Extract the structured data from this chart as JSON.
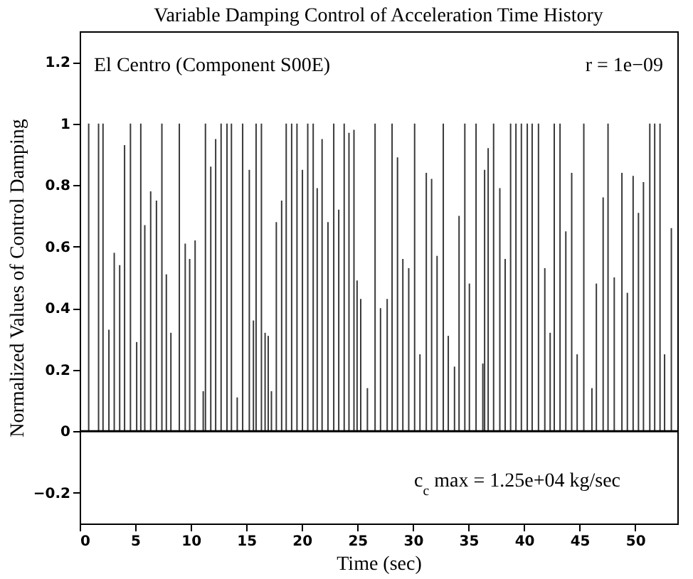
{
  "chart_data": {
    "type": "bar",
    "title": "Variable Damping Control of Acceleration Time History",
    "xlabel": "Time (sec)",
    "ylabel": "Normalized Values of Control Damping",
    "annotations": [
      "El Centro (Component S00E)",
      "r = 1e−09",
      "c$_{c}$ max = 1.25e+04 kg/sec"
    ],
    "x": [
      0.81,
      1.7,
      2.1,
      2.63,
      3.11,
      3.6,
      4.04,
      4.57,
      5.13,
      5.5,
      5.86,
      6.39,
      6.91,
      7.4,
      7.8,
      8.21,
      8.97,
      9.5,
      9.9,
      10.39,
      11.12,
      11.32,
      11.8,
      12.24,
      12.73,
      13.26,
      13.66,
      14.18,
      14.67,
      15.27,
      15.64,
      15.88,
      16.36,
      16.69,
      16.97,
      17.26,
      17.7,
      18.18,
      18.59,
      19.08,
      19.56,
      20.05,
      20.53,
      21.02,
      21.38,
      21.82,
      22.35,
      22.87,
      23.32,
      23.81,
      24.24,
      24.69,
      24.97,
      25.3,
      25.9,
      26.59,
      27.08,
      27.68,
      28.12,
      28.61,
      29.09,
      29.62,
      30.15,
      30.63,
      31.2,
      31.68,
      32.17,
      32.73,
      33.18,
      33.74,
      34.15,
      34.67,
      35.08,
      35.68,
      36.29,
      36.45,
      36.77,
      37.26,
      37.82,
      38.3,
      38.79,
      39.27,
      39.76,
      40.29,
      40.73,
      41.3,
      41.87,
      42.35,
      42.72,
      43.24,
      43.76,
      44.29,
      44.78,
      45.38,
      46.11,
      46.51,
      47.12,
      47.56,
      48.12,
      48.81,
      49.3,
      49.82,
      50.3,
      50.75,
      51.32,
      51.76,
      52.24,
      52.65,
      53.26
    ],
    "series": [
      {
        "color": "#3a3a3a",
        "values": [
          1,
          1,
          1,
          0.33,
          0.58,
          0.54,
          0.93,
          1,
          0.29,
          1,
          0.67,
          0.78,
          0.75,
          1,
          0.51,
          0.32,
          1,
          0.61,
          0.56,
          0.62,
          0.13,
          1,
          0.86,
          0.95,
          1,
          1,
          1,
          0.11,
          1,
          0.85,
          0.36,
          1,
          1,
          0.32,
          0.31,
          0.13,
          0.68,
          0.75,
          1,
          1,
          1,
          0.85,
          1,
          1,
          0.79,
          0.95,
          0.68,
          1,
          0.72,
          1,
          0.97,
          0.98,
          0.49,
          0.43,
          0.14,
          1,
          0.4,
          0.43,
          1,
          0.89,
          0.56,
          0.53,
          1,
          0.25,
          0.84,
          0.82,
          0.57,
          1,
          0.31,
          0.21,
          0.7,
          1,
          0.48,
          1,
          0.22,
          0.85,
          0.92,
          1,
          0.79,
          0.56,
          1,
          1,
          1,
          1,
          1,
          1,
          0.53,
          0.32,
          1,
          1,
          0.65,
          0.84,
          0.25,
          1,
          0.14,
          0.48,
          0.76,
          1,
          0.5,
          0.84,
          0.45,
          0.83,
          0.71,
          0.81,
          1,
          1,
          1,
          0.25,
          0.66
        ]
      }
    ],
    "xlim": [
      0,
      53.8
    ],
    "xticks": [
      0,
      5,
      10,
      15,
      20,
      25,
      30,
      35,
      40,
      45,
      50
    ],
    "ylim": [
      -0.3,
      1.3
    ],
    "yticks": [
      -0.2,
      0,
      0.2,
      0.4,
      0.6,
      0.8,
      1,
      1.2
    ],
    "ref_lines": [
      {
        "axis": "y",
        "value": 0,
        "color": "#000000"
      }
    ]
  }
}
